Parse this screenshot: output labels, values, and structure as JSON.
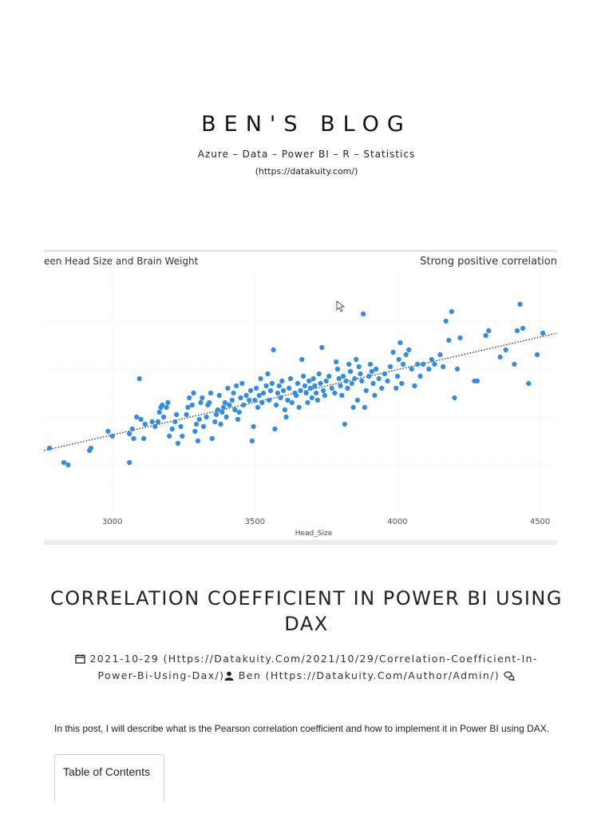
{
  "site": {
    "title": "BEN'S BLOG",
    "tagline": "Azure – Data – Power BI – R – Statistics",
    "link": "(https://datakuity.com/)"
  },
  "post": {
    "title": "CORRELATION COEFFICIENT IN POWER BI USING DAX",
    "date_link": "2021-10-29 (Https://Datakuity.Com/2021/10/29/Correlation-Coefficient-In-Power-Bi-Using-Dax/)",
    "author_link": "Ben (Https://Datakuity.Com/Author/Admin/)",
    "intro": "In this post, I will describe what is the Pearson correlation coefficient and how to implement it in Power BI using DAX.",
    "toc_label": "Table of Contents"
  },
  "icons": {
    "date": "calendar-icon",
    "author": "user-icon",
    "comments": "comments-icon",
    "cursor": "cursor-icon"
  },
  "colors": {
    "point": "#2f8de8",
    "trend": "#333333",
    "text": "#222222"
  },
  "chart_data": {
    "type": "scatter",
    "title": "een Head Size and Brain Weight",
    "annotation": "Strong positive correlation",
    "xlabel": "Head_Size",
    "ylabel": "",
    "x_ticks": [
      3000,
      3500,
      4000,
      4500
    ],
    "xlim": [
      2760,
      4560
    ],
    "ylim": [
      0,
      100
    ],
    "grid": true,
    "trendline": {
      "x": [
        2760,
        4560
      ],
      "y": [
        26,
        75
      ]
    },
    "points": [
      [
        2780,
        27
      ],
      [
        2830,
        21
      ],
      [
        2845,
        20
      ],
      [
        2920,
        26
      ],
      [
        2925,
        27
      ],
      [
        2985,
        34
      ],
      [
        3000,
        32
      ],
      [
        3060,
        33
      ],
      [
        3060,
        21
      ],
      [
        3070,
        35
      ],
      [
        3075,
        31
      ],
      [
        3085,
        40
      ],
      [
        3100,
        39
      ],
      [
        3095,
        56
      ],
      [
        3110,
        31
      ],
      [
        3115,
        37
      ],
      [
        3140,
        38
      ],
      [
        3150,
        36
      ],
      [
        3160,
        38
      ],
      [
        3165,
        42
      ],
      [
        3170,
        44
      ],
      [
        3175,
        45
      ],
      [
        3180,
        40
      ],
      [
        3190,
        44
      ],
      [
        3195,
        46
      ],
      [
        3200,
        32
      ],
      [
        3210,
        35
      ],
      [
        3220,
        38
      ],
      [
        3225,
        41
      ],
      [
        3230,
        29
      ],
      [
        3240,
        36
      ],
      [
        3245,
        32
      ],
      [
        3260,
        41
      ],
      [
        3265,
        44
      ],
      [
        3270,
        48
      ],
      [
        3280,
        45
      ],
      [
        3285,
        50
      ],
      [
        3290,
        34
      ],
      [
        3295,
        37
      ],
      [
        3300,
        30
      ],
      [
        3305,
        39
      ],
      [
        3310,
        46
      ],
      [
        3315,
        48
      ],
      [
        3320,
        36
      ],
      [
        3330,
        40
      ],
      [
        3335,
        45
      ],
      [
        3340,
        46
      ],
      [
        3345,
        50
      ],
      [
        3350,
        31
      ],
      [
        3360,
        38
      ],
      [
        3365,
        41
      ],
      [
        3370,
        43
      ],
      [
        3375,
        49
      ],
      [
        3380,
        37
      ],
      [
        3385,
        42
      ],
      [
        3390,
        44
      ],
      [
        3395,
        46
      ],
      [
        3400,
        40
      ],
      [
        3405,
        52
      ],
      [
        3410,
        45
      ],
      [
        3420,
        47
      ],
      [
        3425,
        50
      ],
      [
        3430,
        43
      ],
      [
        3435,
        53
      ],
      [
        3440,
        39
      ],
      [
        3445,
        42
      ],
      [
        3450,
        48
      ],
      [
        3455,
        54
      ],
      [
        3460,
        45
      ],
      [
        3470,
        49
      ],
      [
        3480,
        47
      ],
      [
        3485,
        51
      ],
      [
        3490,
        30
      ],
      [
        3495,
        36
      ],
      [
        3500,
        47
      ],
      [
        3505,
        52
      ],
      [
        3510,
        44
      ],
      [
        3515,
        49
      ],
      [
        3520,
        56
      ],
      [
        3525,
        46
      ],
      [
        3530,
        50
      ],
      [
        3540,
        53
      ],
      [
        3545,
        58
      ],
      [
        3550,
        47
      ],
      [
        3555,
        51
      ],
      [
        3560,
        54
      ],
      [
        3565,
        68
      ],
      [
        3570,
        35
      ],
      [
        3575,
        45
      ],
      [
        3580,
        50
      ],
      [
        3585,
        53
      ],
      [
        3590,
        48
      ],
      [
        3595,
        55
      ],
      [
        3600,
        51
      ],
      [
        3605,
        43
      ],
      [
        3610,
        40
      ],
      [
        3615,
        47
      ],
      [
        3620,
        52
      ],
      [
        3625,
        56
      ],
      [
        3630,
        46
      ],
      [
        3640,
        50
      ],
      [
        3645,
        49
      ],
      [
        3650,
        54
      ],
      [
        3655,
        44
      ],
      [
        3660,
        51
      ],
      [
        3665,
        64
      ],
      [
        3670,
        57
      ],
      [
        3675,
        53
      ],
      [
        3680,
        50
      ],
      [
        3685,
        46
      ],
      [
        3690,
        55
      ],
      [
        3695,
        52
      ],
      [
        3700,
        48
      ],
      [
        3705,
        56
      ],
      [
        3710,
        53
      ],
      [
        3715,
        50
      ],
      [
        3720,
        47
      ],
      [
        3725,
        58
      ],
      [
        3730,
        54
      ],
      [
        3735,
        69
      ],
      [
        3740,
        51
      ],
      [
        3745,
        49
      ],
      [
        3750,
        55
      ],
      [
        3760,
        57
      ],
      [
        3770,
        52
      ],
      [
        3780,
        50
      ],
      [
        3785,
        63
      ],
      [
        3790,
        60
      ],
      [
        3795,
        56
      ],
      [
        3800,
        53
      ],
      [
        3805,
        49
      ],
      [
        3810,
        57
      ],
      [
        3815,
        37
      ],
      [
        3820,
        55
      ],
      [
        3825,
        52
      ],
      [
        3830,
        62
      ],
      [
        3835,
        59
      ],
      [
        3840,
        54
      ],
      [
        3845,
        44
      ],
      [
        3850,
        56
      ],
      [
        3855,
        64
      ],
      [
        3860,
        47
      ],
      [
        3865,
        61
      ],
      [
        3870,
        58
      ],
      [
        3875,
        55
      ],
      [
        3880,
        83
      ],
      [
        3885,
        44
      ],
      [
        3890,
        51
      ],
      [
        3900,
        57
      ],
      [
        3905,
        62
      ],
      [
        3910,
        59
      ],
      [
        3915,
        54
      ],
      [
        3920,
        49
      ],
      [
        3925,
        60
      ],
      [
        3935,
        56
      ],
      [
        3945,
        52
      ],
      [
        3955,
        58
      ],
      [
        3965,
        55
      ],
      [
        3975,
        61
      ],
      [
        3985,
        67
      ],
      [
        3995,
        52
      ],
      [
        4000,
        57
      ],
      [
        4005,
        64
      ],
      [
        4010,
        71
      ],
      [
        4015,
        54
      ],
      [
        4020,
        62
      ],
      [
        4030,
        66
      ],
      [
        4040,
        68
      ],
      [
        4050,
        60
      ],
      [
        4060,
        53
      ],
      [
        4070,
        62
      ],
      [
        4080,
        57
      ],
      [
        4090,
        62
      ],
      [
        4110,
        60
      ],
      [
        4120,
        64
      ],
      [
        4130,
        62
      ],
      [
        4150,
        66
      ],
      [
        4160,
        61
      ],
      [
        4170,
        80
      ],
      [
        4180,
        72
      ],
      [
        4190,
        84
      ],
      [
        4200,
        48
      ],
      [
        4210,
        60
      ],
      [
        4220,
        73
      ],
      [
        4270,
        55
      ],
      [
        4280,
        55
      ],
      [
        4310,
        74
      ],
      [
        4320,
        76
      ],
      [
        4360,
        65
      ],
      [
        4380,
        68
      ],
      [
        4410,
        62
      ],
      [
        4420,
        76
      ],
      [
        4430,
        87
      ],
      [
        4440,
        77
      ],
      [
        4460,
        54
      ],
      [
        4490,
        66
      ],
      [
        4510,
        75
      ]
    ]
  }
}
